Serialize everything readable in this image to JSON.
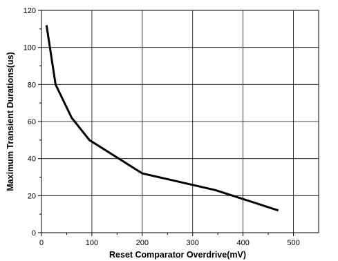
{
  "chart_data": {
    "type": "line",
    "xlabel": "Reset Comparator Overdrive(mV)",
    "ylabel": "Maximum Transient Durations(us)",
    "xlim": [
      0,
      550
    ],
    "ylim": [
      0,
      120
    ],
    "x_ticks": [
      0,
      100,
      200,
      300,
      400,
      500
    ],
    "y_ticks": [
      0,
      20,
      40,
      60,
      80,
      100,
      120
    ],
    "grid": true,
    "series": [
      {
        "x": [
          10,
          28,
          60,
          95,
          200,
          345,
          470
        ],
        "y": [
          112,
          80,
          62,
          50,
          32,
          23,
          12
        ],
        "color": "#000000"
      }
    ]
  }
}
